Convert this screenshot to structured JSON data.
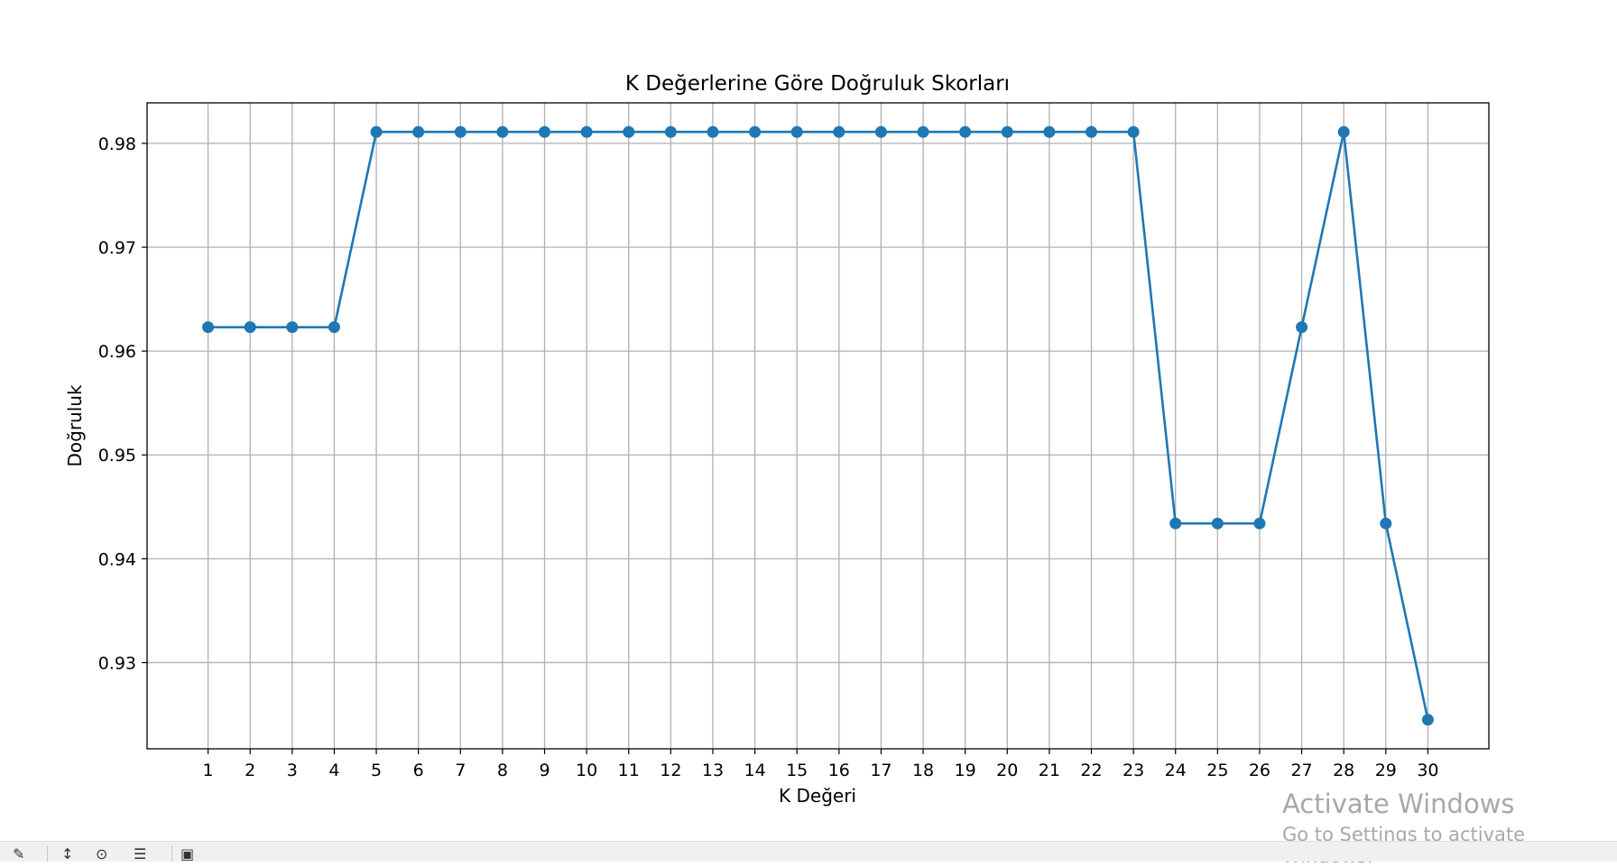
{
  "chart_data": {
    "type": "line",
    "title": "K Değerlerine Göre Doğruluk Skorları",
    "xlabel": "K Değeri",
    "ylabel": "Doğruluk",
    "x": [
      1,
      2,
      3,
      4,
      5,
      6,
      7,
      8,
      9,
      10,
      11,
      12,
      13,
      14,
      15,
      16,
      17,
      18,
      19,
      20,
      21,
      22,
      23,
      24,
      25,
      26,
      27,
      28,
      29,
      30
    ],
    "series": [
      {
        "values": [
          0.9623,
          0.9623,
          0.9623,
          0.9623,
          0.9811,
          0.9811,
          0.9811,
          0.9811,
          0.9811,
          0.9811,
          0.9811,
          0.9811,
          0.9811,
          0.9811,
          0.9811,
          0.9811,
          0.9811,
          0.9811,
          0.9811,
          0.9811,
          0.9811,
          0.9811,
          0.9811,
          0.9434,
          0.9434,
          0.9434,
          0.9623,
          0.9811,
          0.9434,
          0.9245
        ],
        "color": "#1f77b4",
        "marker": "circle"
      }
    ],
    "yticks": [
      "0.93",
      "0.94",
      "0.95",
      "0.96",
      "0.97",
      "0.98"
    ],
    "xlim": [
      -0.45,
      31.45
    ],
    "ylim": [
      0.9217,
      0.9839
    ],
    "grid": true,
    "legend": "none"
  },
  "watermark": {
    "title": "Activate Windows",
    "subtitle": "Go to Settings to activate Windows."
  },
  "toolbar": {
    "icons": [
      "pan-icon",
      "zoom-icon",
      "configure-icon",
      "save-icon"
    ]
  }
}
